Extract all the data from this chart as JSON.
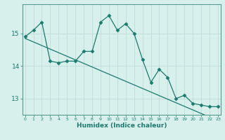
{
  "xlabel": "Humidex (Indice chaleur)",
  "bg_color": "#d8f0ec",
  "grid_color": "#c0dcd8",
  "line_color": "#1a7a6e",
  "spine_color": "#5a9a90",
  "x_values": [
    0,
    1,
    2,
    3,
    4,
    5,
    6,
    7,
    8,
    9,
    10,
    11,
    12,
    13,
    14,
    15,
    16,
    17,
    18,
    19,
    20,
    21,
    22,
    23
  ],
  "y_curve": [
    14.9,
    15.1,
    15.35,
    14.15,
    14.1,
    14.15,
    14.15,
    14.45,
    14.45,
    15.35,
    15.55,
    15.1,
    15.3,
    15.0,
    14.2,
    13.5,
    13.9,
    13.65,
    13.0,
    13.1,
    12.85,
    12.8,
    12.75,
    12.75
  ],
  "y_line": [
    14.85,
    14.74,
    14.63,
    14.52,
    14.41,
    14.3,
    14.19,
    14.08,
    13.97,
    13.86,
    13.75,
    13.64,
    13.53,
    13.42,
    13.31,
    13.2,
    13.09,
    12.98,
    12.87,
    12.76,
    12.65,
    12.54,
    12.43,
    12.32
  ],
  "ylim": [
    12.5,
    15.9
  ],
  "yticks": [
    13,
    14,
    15
  ],
  "xticks": [
    0,
    1,
    2,
    3,
    4,
    5,
    6,
    7,
    8,
    9,
    10,
    11,
    12,
    13,
    14,
    15,
    16,
    17,
    18,
    19,
    20,
    21,
    22,
    23
  ],
  "marker": "D",
  "markersize": 2.5
}
